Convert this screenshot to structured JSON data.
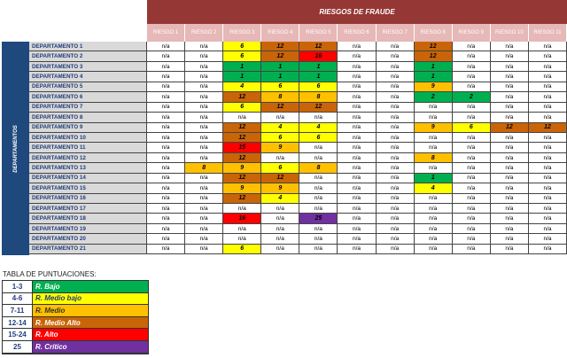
{
  "title": "RIESGOS DE FRAUDE",
  "side_label": "DEPARTAMENTOS",
  "risks": [
    "RIESGO 1",
    "RIESGO 2",
    "RIESGO 3",
    "RIESGO 4",
    "RIESGO 5",
    "RIESGO 6",
    "RIESGO 7",
    "RIESGO 8",
    "RIESGO 9",
    "RIESGO 10",
    "RIESGO 11"
  ],
  "rows": [
    {
      "dept": "DEPARTAMENTO 1",
      "values": [
        "n/a",
        "n/a",
        "6",
        "12",
        "12",
        "n/a",
        "n/a",
        "12",
        "n/a",
        "n/a",
        "n/a"
      ]
    },
    {
      "dept": "DEPARTAMENTO 2",
      "values": [
        "n/a",
        "n/a",
        "6",
        "12",
        "16",
        "n/a",
        "n/a",
        "12",
        "n/a",
        "n/a",
        "n/a"
      ]
    },
    {
      "dept": "DEPARTAMENTO 3",
      "values": [
        "n/a",
        "n/a",
        "1",
        "1",
        "1",
        "n/a",
        "n/a",
        "1",
        "n/a",
        "n/a",
        "n/a"
      ]
    },
    {
      "dept": "DEPARTAMENTO 4",
      "values": [
        "n/a",
        "n/a",
        "1",
        "1",
        "1",
        "n/a",
        "n/a",
        "1",
        "n/a",
        "n/a",
        "n/a"
      ]
    },
    {
      "dept": "DEPARTAMENTO 5",
      "values": [
        "n/a",
        "n/a",
        "4",
        "6",
        "6",
        "n/a",
        "n/a",
        "9",
        "n/a",
        "n/a",
        "n/a"
      ]
    },
    {
      "dept": "DEPARTAMENTO 6",
      "values": [
        "n/a",
        "n/a",
        "12",
        "8",
        "8",
        "n/a",
        "n/a",
        "2",
        "2",
        "n/a",
        "n/a"
      ]
    },
    {
      "dept": "DEPARTAMENTO 7",
      "values": [
        "n/a",
        "n/a",
        "6",
        "12",
        "12",
        "n/a",
        "n/a",
        "n/a",
        "n/a",
        "n/a",
        "n/a"
      ]
    },
    {
      "dept": "DEPARTAMENTO 8",
      "values": [
        "n/a",
        "n/a",
        "n/a",
        "n/a",
        "n/a",
        "n/a",
        "n/a",
        "n/a",
        "n/a",
        "n/a",
        "n/a"
      ]
    },
    {
      "dept": "DEPARTAMENTO 9",
      "values": [
        "n/a",
        "n/a",
        "12",
        "4",
        "4",
        "n/a",
        "n/a",
        "9",
        "6",
        "12",
        "12"
      ]
    },
    {
      "dept": "DEPARTAMENTO 10",
      "values": [
        "n/a",
        "n/a",
        "12",
        "6",
        "6",
        "n/a",
        "n/a",
        "n/a",
        "n/a",
        "n/a",
        "n/a"
      ]
    },
    {
      "dept": "DEPARTAMENTO 11",
      "values": [
        "n/a",
        "n/a",
        "15",
        "9",
        "n/a",
        "n/a",
        "n/a",
        "n/a",
        "n/a",
        "n/a",
        "n/a"
      ]
    },
    {
      "dept": "DEPARTAMENTO 12",
      "values": [
        "n/a",
        "n/a",
        "12",
        "n/a",
        "n/a",
        "n/a",
        "n/a",
        "8",
        "n/a",
        "n/a",
        "n/a"
      ]
    },
    {
      "dept": "DEPARTAMENTO 13",
      "values": [
        "n/a",
        "8",
        "9",
        "6",
        "8",
        "n/a",
        "n/a",
        "n/a",
        "n/a",
        "n/a",
        "n/a"
      ]
    },
    {
      "dept": "DEPARTAMENTO 14",
      "values": [
        "n/a",
        "n/a",
        "12",
        "12",
        "n/a",
        "n/a",
        "n/a",
        "1",
        "n/a",
        "n/a",
        "n/a"
      ]
    },
    {
      "dept": "DEPARTAMENTO 15",
      "values": [
        "n/a",
        "n/a",
        "9",
        "9",
        "n/a",
        "n/a",
        "n/a",
        "4",
        "n/a",
        "n/a",
        "n/a"
      ]
    },
    {
      "dept": "DEPARTAMENTO 16",
      "values": [
        "n/a",
        "n/a",
        "12",
        "4",
        "n/a",
        "n/a",
        "n/a",
        "n/a",
        "n/a",
        "n/a",
        "n/a"
      ]
    },
    {
      "dept": "DEPARTAMENTO 17",
      "values": [
        "n/a",
        "n/a",
        "n/a",
        "n/a",
        "n/a",
        "n/a",
        "n/a",
        "n/a",
        "n/a",
        "n/a",
        "n/a"
      ]
    },
    {
      "dept": "DEPARTAMENTO 18",
      "values": [
        "n/a",
        "n/a",
        "16",
        "n/a",
        "25",
        "n/a",
        "n/a",
        "n/a",
        "n/a",
        "n/a",
        "n/a"
      ]
    },
    {
      "dept": "DEPARTAMENTO 19",
      "values": [
        "n/a",
        "n/a",
        "n/a",
        "n/a",
        "n/a",
        "n/a",
        "n/a",
        "n/a",
        "n/a",
        "n/a",
        "n/a"
      ]
    },
    {
      "dept": "DEPARTAMENTO 20",
      "values": [
        "n/a",
        "n/a",
        "n/a",
        "n/a",
        "n/a",
        "n/a",
        "n/a",
        "n/a",
        "n/a",
        "n/a",
        "n/a"
      ]
    },
    {
      "dept": "DEPARTAMENTO 21",
      "values": [
        "n/a",
        "n/a",
        "6",
        "n/a",
        "n/a",
        "n/a",
        "n/a",
        "n/a",
        "n/a",
        "n/a",
        "n/a"
      ]
    }
  ],
  "legend_title": "TABLA DE PUNTUACIONES:",
  "legend": [
    {
      "range": "1-3",
      "label": "R. Bajo",
      "color": "#00b050",
      "text": "#ffffff",
      "max": 3
    },
    {
      "range": "4-6",
      "label": "R. Medio bajo",
      "color": "#ffff00",
      "text": "#1f3d7a",
      "max": 6
    },
    {
      "range": "7-11",
      "label": "R. Medio",
      "color": "#ffc000",
      "text": "#333333",
      "max": 11
    },
    {
      "range": "12-14",
      "label": "R. Medio Alto",
      "color": "#c96508",
      "text": "#ffffff",
      "max": 14
    },
    {
      "range": "15-24",
      "label": "R. Alto",
      "color": "#ff0000",
      "text": "#ffffff",
      "max": 24
    },
    {
      "range": "25",
      "label": "R. Crítico",
      "color": "#7030a0",
      "text": "#ffffff",
      "max": 25
    }
  ]
}
